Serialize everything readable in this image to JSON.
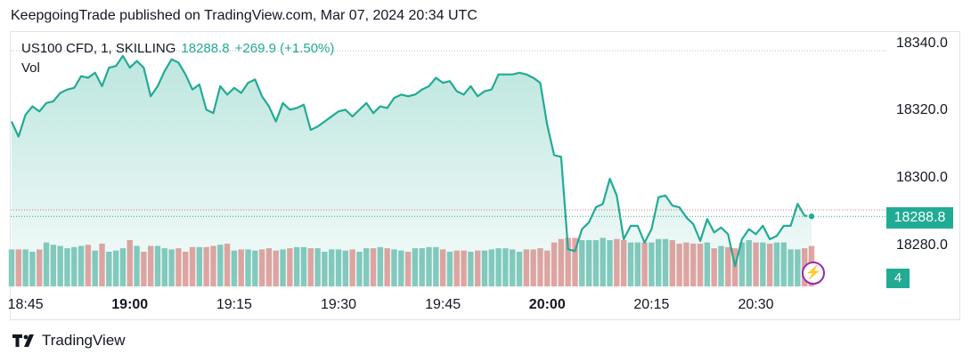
{
  "header": {
    "published": "KeepgoingTrade published on TradingView.com, Mar 07, 2024 20:34 UTC"
  },
  "legend": {
    "symbol": "US100 CFD, 1, SKILLING",
    "price": "18288.8",
    "change": "+269.9 (+1.50%)",
    "volume_label": "Vol"
  },
  "price_tag": "18288.8",
  "volume_tag": "4",
  "footer": {
    "brand": "TradingView"
  },
  "colors": {
    "line": "#22ab94",
    "vol_up": "#88cbbf",
    "vol_down": "#e9a4a2",
    "price_tag": "#22ab94",
    "bolt": "#9c27b0"
  },
  "chart_data": {
    "type": "area",
    "xlabel": "",
    "ylabel": "",
    "ylim": [
      18272,
      18344
    ],
    "y_ticks": [
      "18340.0",
      "18320.0",
      "18300.0",
      "18280.0"
    ],
    "x_ticks": [
      {
        "label": "18:45",
        "bold": false,
        "t": 0
      },
      {
        "label": "19:00",
        "bold": true,
        "t": 15
      },
      {
        "label": "19:15",
        "bold": false,
        "t": 30
      },
      {
        "label": "19:30",
        "bold": false,
        "t": 45
      },
      {
        "label": "19:45",
        "bold": false,
        "t": 60
      },
      {
        "label": "20:00",
        "bold": true,
        "t": 75
      },
      {
        "label": "20:15",
        "bold": false,
        "t": 90
      },
      {
        "label": "20:30",
        "bold": false,
        "t": 105
      }
    ],
    "x_start_minutes": -2,
    "series": [
      {
        "values": [
          18317.0,
          18312.5,
          18319.0,
          18321.5,
          18320.0,
          18322.5,
          18323.0,
          18325.5,
          18326.5,
          18327.0,
          18330.5,
          18330.0,
          18331.5,
          18327.5,
          18333.0,
          18333.5,
          18336.5,
          18333.0,
          18335.0,
          18333.0,
          18324.5,
          18327.5,
          18332.0,
          18335.5,
          18334.5,
          18331.0,
          18326.5,
          18328.0,
          18320.5,
          18319.5,
          18327.5,
          18325.0,
          18327.0,
          18325.5,
          18328.5,
          18329.5,
          18324.5,
          18321.5,
          18317.0,
          18322.5,
          18320.5,
          18321.0,
          18322.0,
          18314.5,
          18315.5,
          18317.0,
          18318.5,
          18320.0,
          18320.5,
          18318.5,
          18320.5,
          18322.5,
          18319.5,
          18321.5,
          18321.0,
          18324.0,
          18325.0,
          18324.5,
          18325.0,
          18326.5,
          18327.5,
          18330.0,
          18328.5,
          18329.0,
          18326.0,
          18325.0,
          18327.5,
          18324.5,
          18326.0,
          18326.5,
          18331.0,
          18331.0,
          18331.0,
          18331.5,
          18331.0,
          18330.0,
          18328.5,
          18316.0,
          18307.0,
          18306.5,
          18279.0,
          18278.5,
          18285.0,
          18287.0,
          18291.5,
          18292.5,
          18300.0,
          18295.0,
          18282.0,
          18286.0,
          18286.0,
          18281.0,
          18285.0,
          18294.5,
          18295.0,
          18292.0,
          18291.5,
          18288.5,
          18286.5,
          18281.5,
          18288.0,
          18284.0,
          18285.5,
          18283.5,
          18274.0,
          18282.0,
          18285.0,
          18283.5,
          18286.0,
          18282.0,
          18283.0,
          18286.0,
          18286.0,
          18292.5,
          18289.0,
          18288.8
        ]
      },
      {
        "name": "Vol",
        "values": [
          32,
          32,
          32,
          30,
          32,
          38,
          36,
          35,
          33,
          34,
          35,
          36,
          31,
          37,
          30,
          31,
          33,
          40,
          35,
          30,
          35,
          35,
          33,
          32,
          33,
          30,
          34,
          34,
          34,
          35,
          36,
          37,
          31,
          32,
          32,
          31,
          32,
          33,
          31,
          32,
          33,
          34,
          34,
          33,
          33,
          30,
          32,
          32,
          31,
          32,
          30,
          33,
          33,
          34,
          33,
          32,
          31,
          30,
          33,
          33,
          34,
          34,
          32,
          30,
          31,
          31,
          30,
          31,
          31,
          32,
          33,
          33,
          32,
          30,
          32,
          32,
          33,
          31,
          38,
          41,
          42,
          42,
          40,
          40,
          40,
          42,
          40,
          41,
          40,
          38,
          38,
          38,
          38,
          41,
          41,
          40,
          37,
          38,
          37,
          37,
          38,
          33,
          35,
          34,
          33,
          38,
          40,
          38,
          38,
          37,
          38,
          38,
          32,
          32,
          33,
          35
        ],
        "up": [
          1,
          0,
          1,
          1,
          0,
          1,
          1,
          1,
          1,
          1,
          1,
          0,
          1,
          0,
          1,
          1,
          1,
          0,
          1,
          0,
          0,
          1,
          1,
          1,
          0,
          0,
          0,
          1,
          0,
          0,
          1,
          0,
          1,
          0,
          1,
          1,
          0,
          0,
          0,
          1,
          0,
          1,
          1,
          0,
          1,
          1,
          1,
          1,
          1,
          0,
          1,
          1,
          0,
          1,
          0,
          1,
          1,
          0,
          1,
          1,
          1,
          1,
          0,
          1,
          0,
          0,
          1,
          0,
          1,
          1,
          1,
          1,
          1,
          1,
          0,
          0,
          0,
          0,
          0,
          0,
          0,
          0,
          1,
          1,
          1,
          1,
          1,
          0,
          0,
          1,
          1,
          0,
          1,
          1,
          1,
          0,
          0,
          0,
          0,
          0,
          1,
          0,
          1,
          0,
          0,
          1,
          1,
          0,
          1,
          0,
          1,
          1,
          1,
          1,
          0,
          0
        ]
      }
    ]
  }
}
